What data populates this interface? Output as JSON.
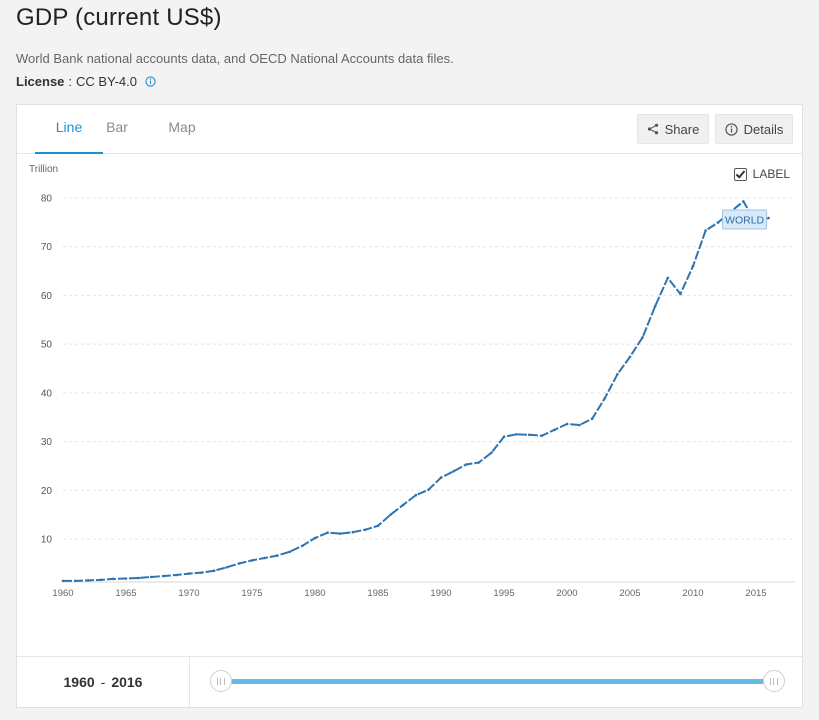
{
  "header": {
    "title": "GDP (current US$)",
    "source": "World Bank national accounts data, and OECD National Accounts data files.",
    "license_label": "License",
    "license_sep": ":",
    "license_value": "CC BY-4.0"
  },
  "tabs": [
    {
      "label": "Line",
      "active": true
    },
    {
      "label": "Bar",
      "active": false
    },
    {
      "label": "Map",
      "active": false
    }
  ],
  "toolbar": {
    "share_label": "Share",
    "details_label": "Details"
  },
  "label_toggle": {
    "label": "LABEL",
    "checked": true
  },
  "chart_data": {
    "type": "line",
    "unit_label": "Trillion",
    "xlim": [
      1960,
      2017
    ],
    "ylim": [
      0,
      85
    ],
    "x_ticks": [
      1960,
      1965,
      1970,
      1975,
      1980,
      1985,
      1990,
      1995,
      2000,
      2005,
      2010,
      2015
    ],
    "y_ticks": [
      10,
      20,
      30,
      40,
      50,
      60,
      70,
      80
    ],
    "grid": true,
    "line_color": "#2e75b0",
    "series": [
      {
        "name": "WORLD",
        "x": [
          1960,
          1961,
          1962,
          1963,
          1964,
          1965,
          1966,
          1967,
          1968,
          1969,
          1970,
          1971,
          1972,
          1973,
          1974,
          1975,
          1976,
          1977,
          1978,
          1979,
          1980,
          1981,
          1982,
          1983,
          1984,
          1985,
          1986,
          1987,
          1988,
          1989,
          1990,
          1991,
          1992,
          1993,
          1994,
          1995,
          1996,
          1997,
          1998,
          1999,
          2000,
          2001,
          2002,
          2003,
          2004,
          2005,
          2006,
          2007,
          2008,
          2009,
          2010,
          2011,
          2012,
          2013,
          2014,
          2015,
          2016
        ],
        "y": [
          1.4,
          1.4,
          1.5,
          1.6,
          1.8,
          1.9,
          2.0,
          2.2,
          2.4,
          2.6,
          2.9,
          3.1,
          3.5,
          4.2,
          5.0,
          5.6,
          6.1,
          6.6,
          7.4,
          8.6,
          10.2,
          11.3,
          11.1,
          11.4,
          11.9,
          12.7,
          15.0,
          17.0,
          19.0,
          20.1,
          22.6,
          23.9,
          25.3,
          25.7,
          27.7,
          31.0,
          31.5,
          31.4,
          31.2,
          32.4,
          33.6,
          33.4,
          34.7,
          38.9,
          43.8,
          47.4,
          51.4,
          57.8,
          63.6,
          60.3,
          66.0,
          73.3,
          75.0,
          77.2,
          79.3,
          74.9,
          75.9
        ]
      }
    ]
  },
  "footer": {
    "range_start": "1960",
    "range_end": "2016",
    "range_sep": "-"
  }
}
